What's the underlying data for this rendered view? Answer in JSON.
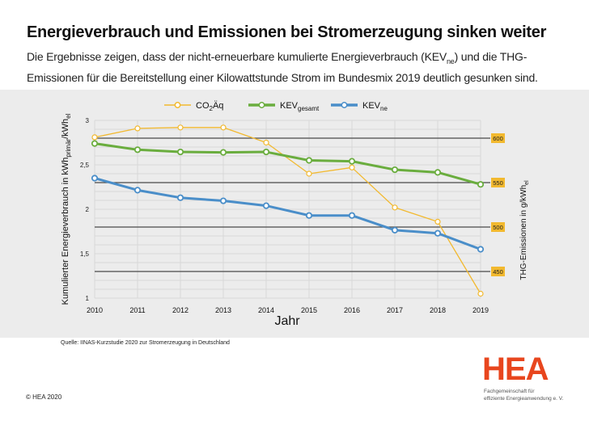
{
  "header": {
    "title": "Energieverbrauch und Emissionen bei Stromerzeugung sinken weiter",
    "subtitle_part1": "Die Ergebnisse zeigen, dass der nicht-erneuerbare kumulierte Energieverbrauch (KEV",
    "subtitle_sub": "ne",
    "subtitle_part2": ") und die THG-Emissionen für die Bereitstellung einer Kilowattstunde Strom im Bundesmix 2019 deutlich gesunken sind."
  },
  "chart_data": {
    "type": "line",
    "title": "",
    "xlabel": "Jahr",
    "ylabel_left": "Kumulierter Energieverbrauch in kWh_primär/kWh_el",
    "ylabel_left_main": "Kumulierter Energieverbrauch in kWh",
    "ylabel_left_sub": "primär",
    "ylabel_left_mid": "/kWh",
    "ylabel_left_sub2": "el",
    "ylabel_right_main": "THG-Emissionen in g/kWh",
    "ylabel_right_sub": "el",
    "x": [
      "2010",
      "2011",
      "2012",
      "2013",
      "2014",
      "2015",
      "2016",
      "2017",
      "2018",
      "2019"
    ],
    "ylim_left": [
      1,
      3
    ],
    "yticks_left": [
      "1",
      "1,5",
      "2",
      "2,5",
      "3"
    ],
    "yticks_left_values": [
      1,
      1.5,
      2,
      2.5,
      3
    ],
    "ylim_right": [
      420,
      620
    ],
    "yticks_right": [
      "450",
      "500",
      "550",
      "600"
    ],
    "yticks_right_values": [
      450,
      500,
      550,
      600
    ],
    "grid": true,
    "legend_position": "top",
    "series": [
      {
        "name": "CO2Äq",
        "legend_main": "CO",
        "legend_sub": "2",
        "legend_rest": "Äq",
        "axis": "right",
        "color": "#f2b92f",
        "values": [
          601,
          611,
          612,
          612,
          595,
          560,
          567,
          522,
          506,
          425
        ]
      },
      {
        "name": "KEV gesamt",
        "legend_main": "KEV",
        "legend_sub": "gesamt",
        "legend_rest": "",
        "axis": "left",
        "color": "#6aad3e",
        "values": [
          2.74,
          2.67,
          2.645,
          2.64,
          2.645,
          2.55,
          2.54,
          2.445,
          2.415,
          2.28
        ]
      },
      {
        "name": "KEV ne",
        "legend_main": "KEV",
        "legend_sub": "ne",
        "legend_rest": "",
        "axis": "left",
        "color": "#4a8ec9",
        "values": [
          2.35,
          2.215,
          2.13,
          2.095,
          2.04,
          1.93,
          1.93,
          1.765,
          1.73,
          1.55
        ]
      }
    ],
    "right_label_color": "#f2b92f"
  },
  "footer": {
    "source": "Quelle: IINAS-Kurzstudie 2020 zur Stromerzeugung in Deutschland",
    "copyright": "© HEA 2020",
    "logo_text": "HEA",
    "logo_sub_line1": "Fachgemeinschaft für",
    "logo_sub_line2": "effiziente Energieanwendung e. V."
  }
}
